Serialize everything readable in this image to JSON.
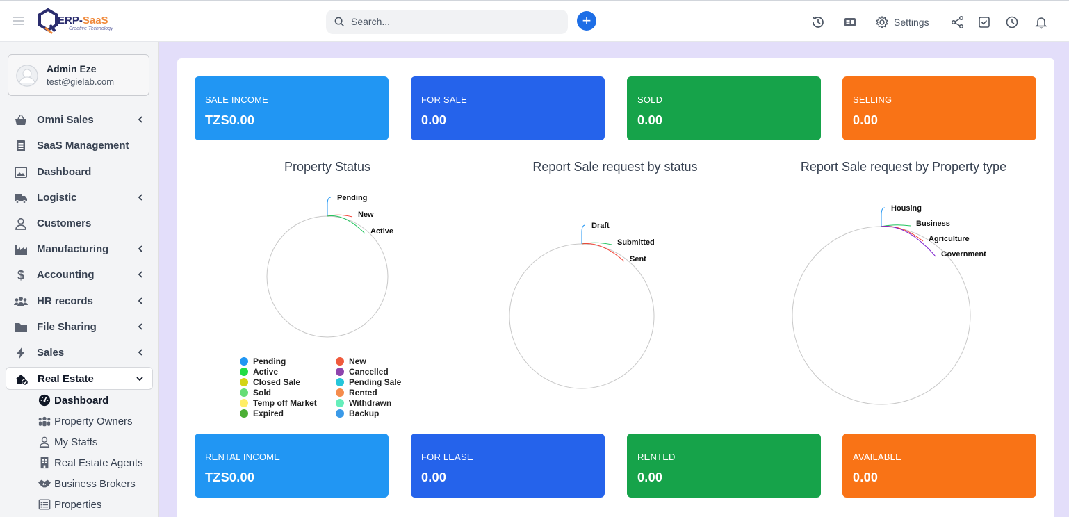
{
  "header": {
    "logo_text_main": "ERP-",
    "logo_text_accent": "SaaS",
    "logo_tagline": "Creative Technology",
    "search_placeholder": "Search...",
    "add_label": "+",
    "settings_label": "Settings",
    "icons": [
      "menu-icon",
      "history-icon",
      "id-card-icon",
      "gear-icon",
      "share-icon",
      "checkbox-icon",
      "clock-icon",
      "bell-icon"
    ]
  },
  "user": {
    "name": "Admin Eze",
    "email": "test@gielab.com"
  },
  "sidebar": {
    "items": [
      {
        "label": "Omni Sales",
        "icon": "basket-icon",
        "expandable": true
      },
      {
        "label": "SaaS Management",
        "icon": "list-icon",
        "expandable": false
      },
      {
        "label": "Dashboard",
        "icon": "image-icon",
        "expandable": false
      },
      {
        "label": "Logistic",
        "icon": "truck-icon",
        "expandable": true
      },
      {
        "label": "Customers",
        "icon": "user-icon",
        "expandable": false
      },
      {
        "label": "Manufacturing",
        "icon": "industry-icon",
        "expandable": true
      },
      {
        "label": "Accounting",
        "icon": "dollar-icon",
        "expandable": true
      },
      {
        "label": "HR records",
        "icon": "users-icon",
        "expandable": true
      },
      {
        "label": "File Sharing",
        "icon": "folder-icon",
        "expandable": true
      },
      {
        "label": "Sales",
        "icon": "bolt-icon",
        "expandable": true
      },
      {
        "label": "Real Estate",
        "icon": "house-check-icon",
        "expandable": true,
        "expanded": true
      }
    ],
    "sub_items": [
      {
        "label": "Dashboard",
        "icon": "gauge-icon",
        "current": true
      },
      {
        "label": "Property Owners",
        "icon": "people-group-icon"
      },
      {
        "label": "My Staffs",
        "icon": "user-outline-icon"
      },
      {
        "label": "Real Estate Agents",
        "icon": "building-icon"
      },
      {
        "label": "Business Brokers",
        "icon": "handshake-icon"
      },
      {
        "label": "Properties",
        "icon": "list-alt-icon"
      }
    ]
  },
  "stats_top": [
    {
      "label": "SALE INCOME",
      "value": "TZS0.00",
      "color": "#2196f3"
    },
    {
      "label": "FOR SALE",
      "value": "0.00",
      "color": "#2563eb"
    },
    {
      "label": "SOLD",
      "value": "0.00",
      "color": "#16a34a"
    },
    {
      "label": "SELLING",
      "value": "0.00",
      "color": "#f97316"
    }
  ],
  "stats_bottom": [
    {
      "label": "RENTAL INCOME",
      "value": "TZS0.00",
      "color": "#2196f3"
    },
    {
      "label": "FOR LEASE",
      "value": "0.00",
      "color": "#2563eb"
    },
    {
      "label": "RENTED",
      "value": "0.00",
      "color": "#16a34a"
    },
    {
      "label": "AVAILABLE",
      "value": "0.00",
      "color": "#f97316"
    }
  ],
  "chart_data": [
    {
      "type": "pie",
      "title": "Property Status",
      "categories": [
        "Pending",
        "New",
        "Active"
      ],
      "values": [
        0,
        0,
        0
      ],
      "colors": [
        "#2196f3",
        "#f44336",
        "#22c55e"
      ],
      "legend": [
        {
          "label": "Pending",
          "color": "#2196f3"
        },
        {
          "label": "New",
          "color": "#f05a3c"
        },
        {
          "label": "Active",
          "color": "#22dd44"
        },
        {
          "label": "Cancelled",
          "color": "#8e44ad"
        },
        {
          "label": "Closed Sale",
          "color": "#d4d415"
        },
        {
          "label": "Pending Sale",
          "color": "#26c6da"
        },
        {
          "label": "Sold",
          "color": "#66dd77"
        },
        {
          "label": "Rented",
          "color": "#f58c4c"
        },
        {
          "label": "Temp off Market",
          "color": "#ffee66"
        },
        {
          "label": "Withdrawn",
          "color": "#66eebb"
        },
        {
          "label": "Expired",
          "color": "#4caf35"
        },
        {
          "label": "Backup",
          "color": "#3b9ae8"
        }
      ],
      "legend_placement": "bottom"
    },
    {
      "type": "pie",
      "title": "Report Sale request by status",
      "categories": [
        "Draft",
        "Submitted",
        "Sent"
      ],
      "values": [
        0,
        0,
        0
      ],
      "colors": [
        "#2196f3",
        "#22c55e",
        "#f44336"
      ]
    },
    {
      "type": "pie",
      "title": "Report Sale request by Property type",
      "categories": [
        "Housing",
        "Business",
        "Agriculture",
        "Government"
      ],
      "values": [
        0,
        0,
        0,
        0
      ],
      "colors": [
        "#2196f3",
        "#22c55e",
        "#f44336",
        "#7e22ce"
      ]
    }
  ]
}
